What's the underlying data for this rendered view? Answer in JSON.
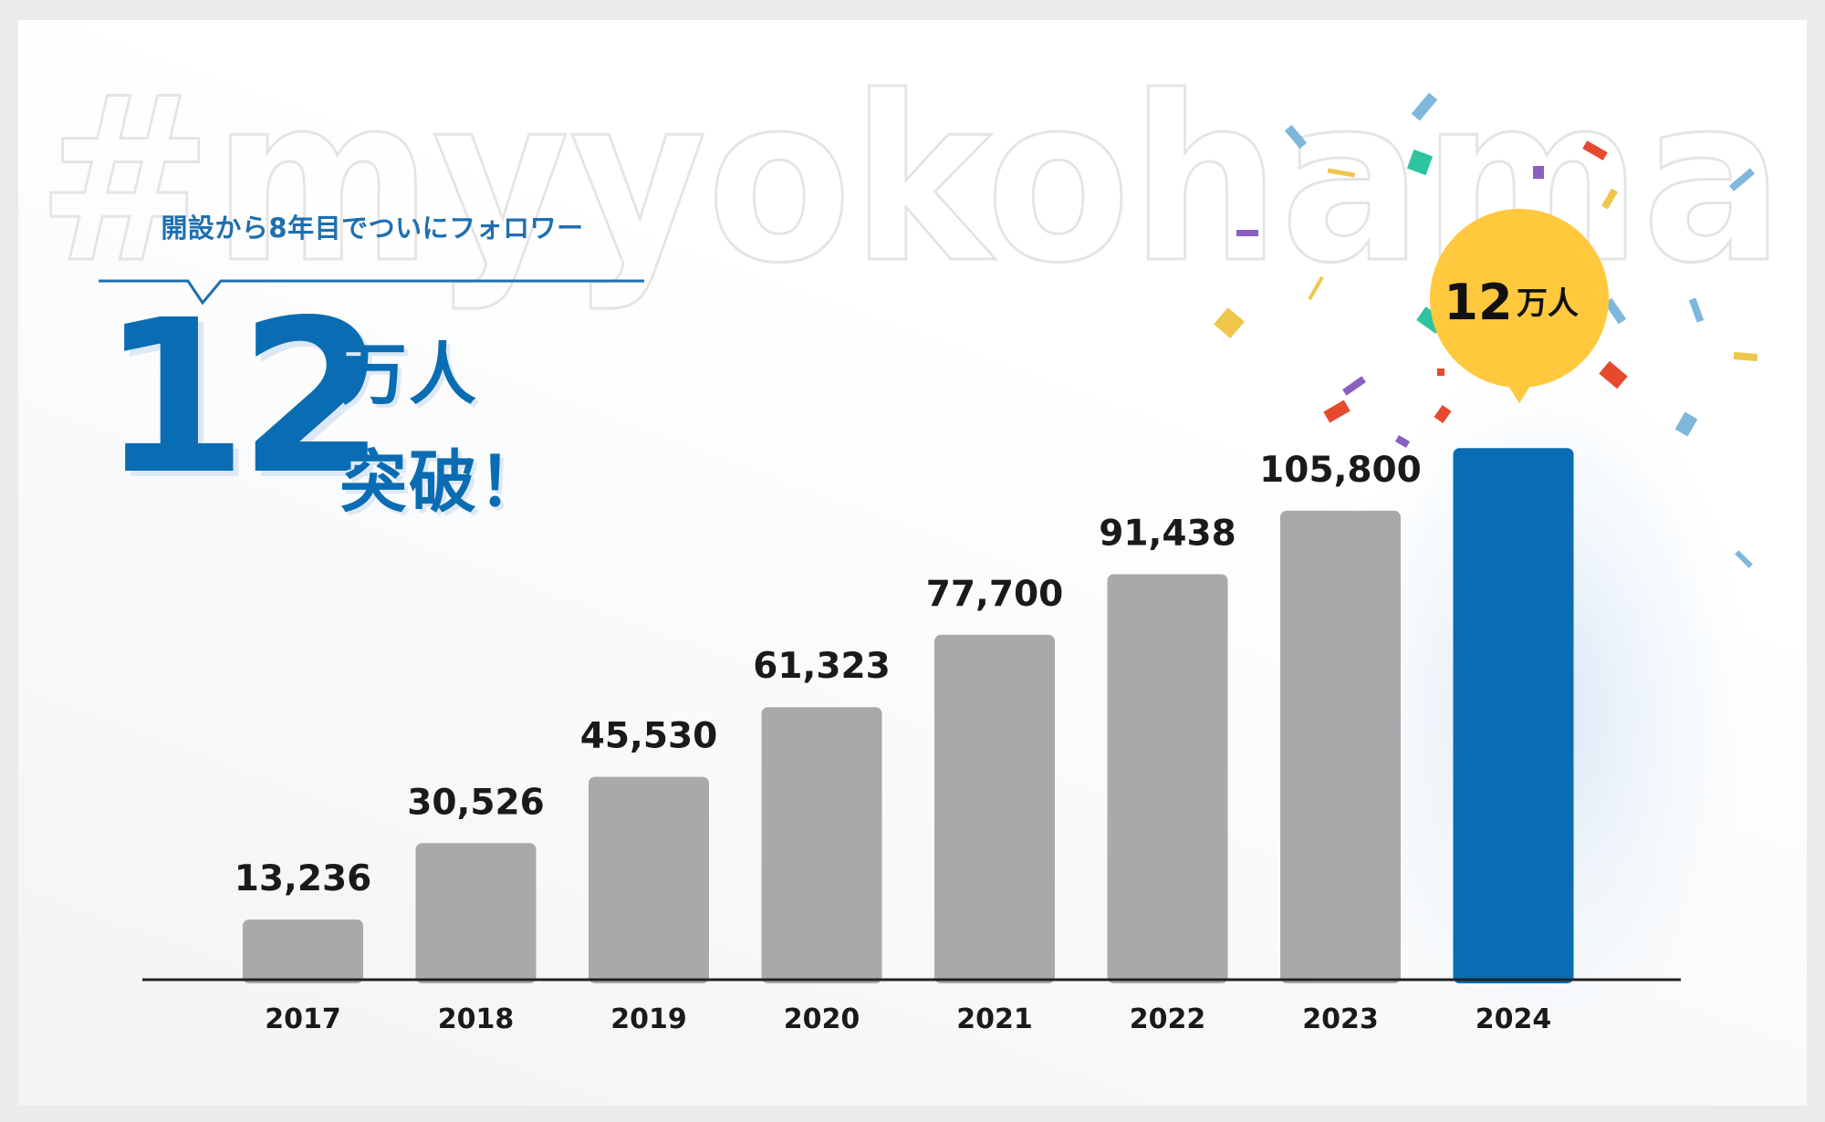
{
  "watermark_text": "#myyokohama",
  "headline": {
    "tagline": "開設から8年目でついにフォロワー",
    "number": "12",
    "line1": "万人",
    "line2": "突破！"
  },
  "badge": {
    "number": "12",
    "unit": "万人"
  },
  "colors": {
    "primary_blue": "#0a6db3",
    "bar_gray": "#a9a9a9",
    "badge_yellow": "#ffc83d",
    "text_dark": "#1a1a1a"
  },
  "chart_data": {
    "type": "bar",
    "categories": [
      "2017",
      "2018",
      "2019",
      "2020",
      "2021",
      "2022",
      "2023",
      "2024"
    ],
    "values": [
      13236,
      30526,
      45530,
      61323,
      77700,
      91438,
      105800,
      120000
    ],
    "value_labels": [
      "13,236",
      "30,526",
      "45,530",
      "61,323",
      "77,700",
      "91,438",
      "105,800",
      ""
    ],
    "highlight_index": 7,
    "title": "",
    "xlabel": "",
    "ylabel": "",
    "grid": false
  }
}
